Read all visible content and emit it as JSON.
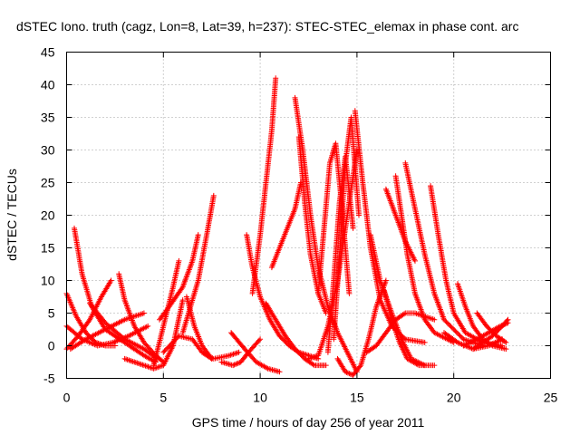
{
  "chart_data": {
    "type": "scatter",
    "title": "dSTEC Iono. truth (cagz, Lon=8, Lat=39, h=237): STEC-STEC_elemax in phase cont. arc",
    "xlabel": "GPS time / hours of day 256 of year 2011",
    "ylabel": "dSTEC  / TECUs",
    "xlim": [
      0,
      25
    ],
    "ylim": [
      -5,
      45
    ],
    "xticks": [
      0,
      5,
      10,
      15,
      20,
      25
    ],
    "yticks": [
      -5,
      0,
      5,
      10,
      15,
      20,
      25,
      30,
      35,
      40,
      45
    ],
    "grid": true,
    "marker": "+",
    "color": "#ff0000",
    "series": [
      {
        "x": [
          0.0,
          0.5,
          1.0,
          1.5,
          2.0,
          2.5
        ],
        "y": [
          8.0,
          4.5,
          2.0,
          0.5,
          0.0,
          0.0
        ]
      },
      {
        "x": [
          0.4,
          0.8,
          1.3,
          2.0,
          3.0,
          4.0,
          4.6
        ],
        "y": [
          18.0,
          11.0,
          6.0,
          2.5,
          0.5,
          -1.5,
          -2.5
        ]
      },
      {
        "x": [
          0.0,
          0.6,
          1.2,
          1.8,
          2.3
        ],
        "y": [
          -0.5,
          1.5,
          4.0,
          7.5,
          10.0
        ]
      },
      {
        "x": [
          0.0,
          0.8,
          1.6,
          2.4,
          3.2,
          4.2
        ],
        "y": [
          3.0,
          1.0,
          0.0,
          0.5,
          1.5,
          3.0
        ]
      },
      {
        "x": [
          0.2,
          1.0,
          2.0,
          3.0,
          4.0
        ],
        "y": [
          -0.5,
          1.0,
          2.5,
          4.0,
          5.0
        ]
      },
      {
        "x": [
          2.7,
          3.0,
          3.5,
          4.0,
          4.6,
          5.0
        ],
        "y": [
          11.0,
          7.0,
          3.0,
          0.5,
          -1.5,
          -2.5
        ]
      },
      {
        "x": [
          1.2,
          2.0,
          3.0,
          4.0,
          4.7
        ],
        "y": [
          6.5,
          3.5,
          1.0,
          -0.5,
          -2.0
        ]
      },
      {
        "x": [
          3.0,
          3.5,
          4.0,
          4.5,
          5.0,
          5.5,
          6.0
        ],
        "y": [
          -2.0,
          -2.5,
          -3.0,
          -3.5,
          -3.0,
          0.0,
          7.0
        ]
      },
      {
        "x": [
          4.5,
          5.0,
          5.5,
          5.8
        ],
        "y": [
          -3.0,
          3.0,
          9.0,
          13.0
        ]
      },
      {
        "x": [
          4.8,
          5.3,
          6.0,
          6.5,
          6.8
        ],
        "y": [
          4.0,
          6.0,
          9.0,
          13.0,
          17.0
        ]
      },
      {
        "x": [
          5.0,
          5.8,
          6.5,
          7.0,
          7.5
        ],
        "y": [
          -1.0,
          1.5,
          1.0,
          -1.0,
          -2.0
        ]
      },
      {
        "x": [
          6.2,
          6.6,
          7.0,
          7.5
        ],
        "y": [
          7.5,
          3.0,
          0.0,
          -2.0
        ]
      },
      {
        "x": [
          7.0,
          7.6,
          8.4,
          8.9
        ],
        "y": [
          -1.0,
          -2.0,
          -1.5,
          -1.0
        ]
      },
      {
        "x": [
          6.0,
          6.8,
          7.3,
          7.6
        ],
        "y": [
          2.0,
          10.0,
          18.0,
          23.0
        ]
      },
      {
        "x": [
          8.0,
          8.6,
          9.0,
          9.4,
          10.0
        ],
        "y": [
          -2.5,
          -3.0,
          -2.5,
          -1.0,
          1.0
        ]
      },
      {
        "x": [
          8.5,
          9.2,
          9.8,
          10.4,
          11.0
        ],
        "y": [
          2.0,
          -0.5,
          -2.5,
          -3.5,
          -4.0
        ]
      },
      {
        "x": [
          9.3,
          9.6,
          10.0,
          10.5,
          11.0,
          11.5,
          12.0,
          12.5,
          13.0
        ],
        "y": [
          17.0,
          12.0,
          7.5,
          4.0,
          1.5,
          0.0,
          -1.0,
          -1.5,
          -2.0
        ]
      },
      {
        "x": [
          9.6,
          10.0,
          10.3,
          10.6,
          10.8
        ],
        "y": [
          8.0,
          17.0,
          25.0,
          33.0,
          41.0
        ]
      },
      {
        "x": [
          10.3,
          10.8,
          11.3,
          11.8,
          12.3,
          12.8,
          13.4
        ],
        "y": [
          6.5,
          4.0,
          1.5,
          -0.5,
          -2.0,
          -3.0,
          -3.0
        ]
      },
      {
        "x": [
          10.6,
          11.0,
          11.4,
          11.8,
          12.1
        ],
        "y": [
          12.0,
          15.0,
          18.0,
          21.0,
          25.0
        ]
      },
      {
        "x": [
          11.8,
          12.2,
          12.6,
          13.0,
          13.5,
          14.0,
          14.5,
          15.0
        ],
        "y": [
          38.0,
          30.0,
          20.0,
          12.0,
          6.0,
          2.0,
          -1.0,
          -4.0
        ]
      },
      {
        "x": [
          12.0,
          12.3,
          12.6,
          13.0,
          13.4
        ],
        "y": [
          32.0,
          22.0,
          14.0,
          8.0,
          5.0
        ]
      },
      {
        "x": [
          12.5,
          13.0,
          13.5,
          14.0,
          14.5,
          15.0
        ],
        "y": [
          -2.0,
          -1.5,
          3.0,
          10.0,
          20.0,
          30.0
        ]
      },
      {
        "x": [
          13.0,
          13.3,
          13.6,
          13.9,
          14.2,
          14.6
        ],
        "y": [
          8.0,
          18.0,
          28.0,
          31.0,
          22.0,
          8.0
        ]
      },
      {
        "x": [
          13.5,
          13.8,
          14.1,
          14.4,
          14.8
        ],
        "y": [
          -1.0,
          10.0,
          22.0,
          29.0,
          18.0
        ]
      },
      {
        "x": [
          13.8,
          14.1,
          14.4,
          14.7,
          15.1
        ],
        "y": [
          1.0,
          14.0,
          28.0,
          35.0,
          20.0
        ]
      },
      {
        "x": [
          14.0,
          14.4,
          14.8,
          15.2,
          15.6,
          16.0,
          16.5
        ],
        "y": [
          -2.0,
          -4.0,
          -4.5,
          -3.0,
          1.0,
          6.0,
          10.0
        ]
      },
      {
        "x": [
          14.9,
          15.3,
          15.7,
          16.2,
          16.8,
          17.5,
          18.5
        ],
        "y": [
          36.0,
          25.0,
          15.0,
          7.0,
          3.0,
          1.0,
          0.5
        ]
      },
      {
        "x": [
          15.5,
          16.0,
          16.5,
          17.0,
          17.5,
          18.0,
          19.0
        ],
        "y": [
          -1.0,
          0.0,
          2.0,
          4.0,
          5.0,
          5.0,
          4.0
        ]
      },
      {
        "x": [
          15.7,
          16.2,
          16.8,
          17.3,
          17.8,
          18.5
        ],
        "y": [
          17.0,
          10.0,
          5.0,
          1.0,
          -2.0,
          -3.0
        ]
      },
      {
        "x": [
          16.4,
          16.8,
          17.2,
          17.6,
          18.2,
          19.0
        ],
        "y": [
          8.5,
          4.0,
          0.5,
          -2.0,
          -3.0,
          -3.0
        ]
      },
      {
        "x": [
          17.0,
          17.3,
          17.6,
          18.0,
          18.5,
          19.0,
          20.0
        ],
        "y": [
          26.0,
          20.0,
          14.0,
          8.0,
          4.0,
          2.0,
          0.5
        ]
      },
      {
        "x": [
          17.5,
          18.0,
          18.5,
          19.0,
          19.5,
          20.5,
          21.5
        ],
        "y": [
          28.0,
          21.0,
          14.0,
          8.0,
          4.0,
          1.0,
          0.0
        ]
      },
      {
        "x": [
          16.5,
          17.0,
          17.5,
          18.0
        ],
        "y": [
          24.0,
          20.0,
          16.0,
          13.0
        ]
      },
      {
        "x": [
          18.8,
          19.2,
          19.6,
          20.0,
          20.6,
          21.5,
          22.5
        ],
        "y": [
          24.5,
          17.0,
          10.0,
          5.0,
          2.0,
          0.5,
          0.0
        ]
      },
      {
        "x": [
          20.2,
          20.6,
          21.0,
          21.5,
          22.0,
          22.7
        ],
        "y": [
          9.5,
          6.0,
          3.0,
          1.0,
          0.0,
          -0.5
        ]
      },
      {
        "x": [
          21.0,
          21.5,
          22.0,
          22.5,
          22.8
        ],
        "y": [
          -0.5,
          0.5,
          1.5,
          3.0,
          4.0
        ]
      },
      {
        "x": [
          21.2,
          21.7,
          22.2,
          22.7
        ],
        "y": [
          5.0,
          3.0,
          1.5,
          0.5
        ]
      },
      {
        "x": [
          20.5,
          21.2,
          21.8,
          22.4,
          22.8
        ],
        "y": [
          0.0,
          1.0,
          2.0,
          3.0,
          3.5
        ]
      },
      {
        "x": [
          19.5,
          20.2,
          21.0,
          21.8,
          22.5
        ],
        "y": [
          2.0,
          0.5,
          -0.5,
          0.0,
          1.0
        ]
      }
    ]
  }
}
